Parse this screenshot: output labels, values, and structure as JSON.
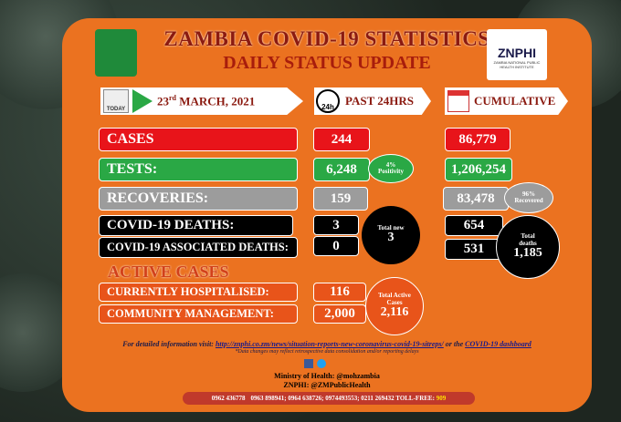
{
  "header": {
    "title": "ZAMBIA COVID-19 STATISTICS",
    "subtitle": "DAILY STATUS UPDATE",
    "logo": "ZNPHI",
    "logo_caption": "ZAMBIA NATIONAL PUBLIC HEALTH INSTITUTE"
  },
  "columns": {
    "today_icon": "TODAY",
    "date": {
      "day": "23",
      "suffix": "rd",
      "rest": "MARCH, 2021"
    },
    "clock_icon": "24h",
    "past": "PAST 24HRS",
    "cumulative": "CUMULATIVE"
  },
  "rows": [
    {
      "label": "CASES",
      "past": "244",
      "cumulative": "86,779"
    },
    {
      "label": "TESTS:",
      "past": "6,248",
      "cumulative": "1,206,254"
    },
    {
      "label": "RECOVERIES:",
      "past": "159",
      "cumulative": "83,478"
    },
    {
      "label": "COVID-19 DEATHS:",
      "past": "3",
      "cumulative": "654"
    },
    {
      "label": "COVID-19 ASSOCIATED DEATHS:",
      "past": "0",
      "cumulative": "531"
    }
  ],
  "badges": {
    "positivity": {
      "value": "4%",
      "label": "Positivity"
    },
    "recovered": {
      "value": "96%",
      "label": "Recovered"
    },
    "total_new": {
      "label": "Total new",
      "value": "3"
    },
    "total_deaths": {
      "label": "Total deaths",
      "value": "1,185"
    }
  },
  "active": {
    "title": "ACTIVE CASES",
    "rows": [
      {
        "label": "CURRENTLY HOSPITALISED:",
        "value": "116"
      },
      {
        "label": "COMMUNITY MANAGEMENT:",
        "value": "2,000"
      }
    ],
    "total": {
      "label": "Total Active Cases",
      "value": "2,116"
    }
  },
  "footer": {
    "info_prefix": "For detailed information visit:",
    "url": "http://znphi.co.zm/news/situation-reports-new-coronavirus-covid-19-sitreps/",
    "or": "or the",
    "dashboard": "COVID-19 dashboard",
    "note": "*Data changes may reflect retrospective data consolidation and/or reporting delays",
    "moh": "Ministry of Health: @mohzambia",
    "znphi": "ZNPHI: @ZMPublicHealth",
    "phone1": "0962 436778",
    "phones": "0963 898941; 0964 638726; 0974493553; 0211 269432 TOLL-FREE:",
    "tollfree": "909"
  }
}
